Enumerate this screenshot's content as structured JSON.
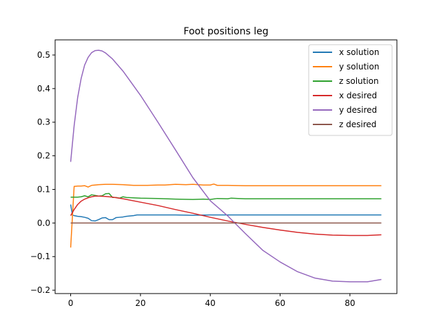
{
  "chart_data": {
    "type": "line",
    "title": "Foot positions leg",
    "xlabel": "",
    "ylabel": "",
    "xlim": [
      -4.45,
      93.45
    ],
    "ylim": [
      -0.21,
      0.545
    ],
    "xticks": [
      0,
      20,
      40,
      60,
      80
    ],
    "xtick_labels": [
      "0",
      "20",
      "40",
      "60",
      "80"
    ],
    "yticks": [
      -0.2,
      -0.1,
      0.0,
      0.1,
      0.2,
      0.3,
      0.4,
      0.5
    ],
    "ytick_labels": [
      "−0.2",
      "−0.1",
      "0.0",
      "0.1",
      "0.2",
      "0.3",
      "0.4",
      "0.5"
    ],
    "grid": false,
    "legend": {
      "location": "upper right"
    },
    "series": [
      {
        "name": "x solution",
        "color": "#1f77b4",
        "points": [
          [
            0,
            0.055
          ],
          [
            0.5,
            0.024
          ],
          [
            1,
            0.022
          ],
          [
            2,
            0.02
          ],
          [
            3,
            0.019
          ],
          [
            4,
            0.017
          ],
          [
            5,
            0.014
          ],
          [
            6,
            0.007
          ],
          [
            7,
            0.006
          ],
          [
            8,
            0.01
          ],
          [
            9,
            0.015
          ],
          [
            10,
            0.016
          ],
          [
            11,
            0.01
          ],
          [
            12,
            0.01
          ],
          [
            13,
            0.016
          ],
          [
            14,
            0.017
          ],
          [
            15,
            0.018
          ],
          [
            16,
            0.02
          ],
          [
            17,
            0.021
          ],
          [
            18,
            0.022
          ],
          [
            19,
            0.024
          ],
          [
            20,
            0.024
          ],
          [
            25,
            0.024
          ],
          [
            30,
            0.024
          ],
          [
            35,
            0.023
          ],
          [
            40,
            0.024
          ],
          [
            45,
            0.024
          ],
          [
            50,
            0.024
          ],
          [
            55,
            0.024
          ],
          [
            60,
            0.024
          ],
          [
            65,
            0.024
          ],
          [
            70,
            0.024
          ],
          [
            75,
            0.024
          ],
          [
            80,
            0.024
          ],
          [
            85,
            0.024
          ],
          [
            89,
            0.024
          ]
        ]
      },
      {
        "name": "y solution",
        "color": "#ff7f0e",
        "points": [
          [
            0,
            -0.073
          ],
          [
            1,
            0.109
          ],
          [
            2,
            0.11
          ],
          [
            3,
            0.11
          ],
          [
            4,
            0.111
          ],
          [
            5,
            0.107
          ],
          [
            6,
            0.112
          ],
          [
            7,
            0.113
          ],
          [
            8,
            0.114
          ],
          [
            10,
            0.115
          ],
          [
            12,
            0.115
          ],
          [
            15,
            0.114
          ],
          [
            18,
            0.112
          ],
          [
            20,
            0.112
          ],
          [
            22,
            0.112
          ],
          [
            25,
            0.113
          ],
          [
            27,
            0.113
          ],
          [
            30,
            0.115
          ],
          [
            33,
            0.114
          ],
          [
            35,
            0.115
          ],
          [
            38,
            0.113
          ],
          [
            40,
            0.113
          ],
          [
            41,
            0.116
          ],
          [
            42,
            0.112
          ],
          [
            45,
            0.112
          ],
          [
            50,
            0.111
          ],
          [
            55,
            0.111
          ],
          [
            60,
            0.111
          ],
          [
            70,
            0.111
          ],
          [
            80,
            0.111
          ],
          [
            89,
            0.111
          ]
        ]
      },
      {
        "name": "z solution",
        "color": "#2ca02c",
        "points": [
          [
            0,
            0.077
          ],
          [
            2,
            0.077
          ],
          [
            3,
            0.078
          ],
          [
            4,
            0.081
          ],
          [
            5,
            0.078
          ],
          [
            6,
            0.084
          ],
          [
            7,
            0.082
          ],
          [
            8,
            0.08
          ],
          [
            9,
            0.081
          ],
          [
            10,
            0.087
          ],
          [
            11,
            0.088
          ],
          [
            12,
            0.076
          ],
          [
            13,
            0.076
          ],
          [
            14,
            0.074
          ],
          [
            15,
            0.078
          ],
          [
            16,
            0.076
          ],
          [
            18,
            0.075
          ],
          [
            20,
            0.074
          ],
          [
            25,
            0.073
          ],
          [
            30,
            0.071
          ],
          [
            35,
            0.07
          ],
          [
            38,
            0.071
          ],
          [
            40,
            0.07
          ],
          [
            42,
            0.073
          ],
          [
            45,
            0.072
          ],
          [
            46,
            0.074
          ],
          [
            48,
            0.073
          ],
          [
            50,
            0.072
          ],
          [
            55,
            0.072
          ],
          [
            60,
            0.072
          ],
          [
            70,
            0.072
          ],
          [
            80,
            0.072
          ],
          [
            89,
            0.072
          ]
        ]
      },
      {
        "name": "x desired",
        "color": "#d62728",
        "points": [
          [
            0,
            0.022
          ],
          [
            1,
            0.04
          ],
          [
            2,
            0.055
          ],
          [
            3,
            0.065
          ],
          [
            4,
            0.071
          ],
          [
            5,
            0.075
          ],
          [
            6,
            0.078
          ],
          [
            7,
            0.08
          ],
          [
            8,
            0.08
          ],
          [
            10,
            0.079
          ],
          [
            12,
            0.077
          ],
          [
            15,
            0.072
          ],
          [
            20,
            0.062
          ],
          [
            25,
            0.052
          ],
          [
            30,
            0.04
          ],
          [
            35,
            0.029
          ],
          [
            40,
            0.017
          ],
          [
            45,
            0.006
          ],
          [
            50,
            -0.004
          ],
          [
            55,
            -0.013
          ],
          [
            60,
            -0.021
          ],
          [
            65,
            -0.028
          ],
          [
            70,
            -0.033
          ],
          [
            75,
            -0.036
          ],
          [
            80,
            -0.037
          ],
          [
            85,
            -0.037
          ],
          [
            89,
            -0.035
          ]
        ]
      },
      {
        "name": "y desired",
        "color": "#9467bd",
        "points": [
          [
            0,
            0.182
          ],
          [
            1,
            0.29
          ],
          [
            2,
            0.373
          ],
          [
            3,
            0.43
          ],
          [
            4,
            0.47
          ],
          [
            5,
            0.493
          ],
          [
            6,
            0.507
          ],
          [
            7,
            0.513
          ],
          [
            8,
            0.514
          ],
          [
            9,
            0.512
          ],
          [
            10,
            0.506
          ],
          [
            12,
            0.488
          ],
          [
            15,
            0.452
          ],
          [
            20,
            0.38
          ],
          [
            25,
            0.3
          ],
          [
            30,
            0.218
          ],
          [
            35,
            0.135
          ],
          [
            40,
            0.066
          ],
          [
            45,
            0.021
          ],
          [
            50,
            -0.031
          ],
          [
            55,
            -0.081
          ],
          [
            60,
            -0.116
          ],
          [
            65,
            -0.145
          ],
          [
            70,
            -0.164
          ],
          [
            75,
            -0.173
          ],
          [
            80,
            -0.175
          ],
          [
            85,
            -0.175
          ],
          [
            89,
            -0.168
          ]
        ]
      },
      {
        "name": "z desired",
        "color": "#8c564b",
        "points": [
          [
            0,
            0.0
          ],
          [
            89,
            0.0
          ]
        ]
      }
    ]
  }
}
